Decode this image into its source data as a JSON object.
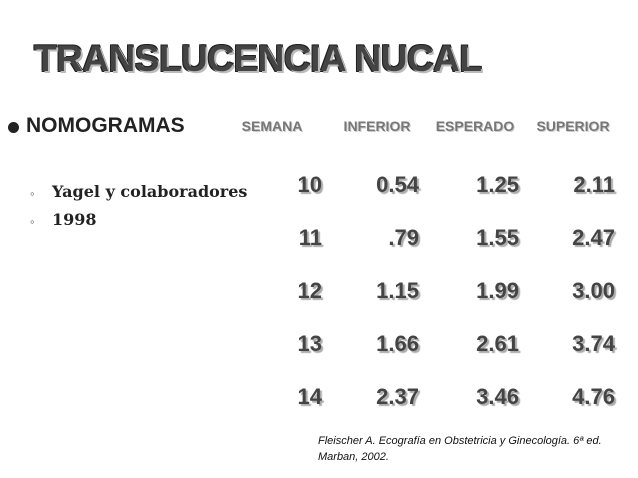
{
  "header": {
    "title": "TRANSLUCENCIA NUCAL"
  },
  "bullet": "NOMOGRAMAS",
  "sub_bullets": [
    "Yagel y colaboradores",
    "1998"
  ],
  "table": {
    "columns": [
      "SEMANA",
      "INFERIOR",
      "ESPERADO",
      "SUPERIOR"
    ],
    "rows": [
      [
        "10",
        "0.54",
        "1.25",
        "2.11"
      ],
      [
        "11",
        ".79",
        "1.55",
        "2.47"
      ],
      [
        "12",
        "1.15",
        "1.99",
        "3.00"
      ],
      [
        "13",
        "1.66",
        "2.61",
        "3.74"
      ],
      [
        "14",
        "2.37",
        "3.46",
        "4.76"
      ]
    ]
  },
  "citation": [
    "Fleischer A. Ecografía en Obstetricia y Ginecología. 6ª ed.",
    "Marban, 2002."
  ]
}
